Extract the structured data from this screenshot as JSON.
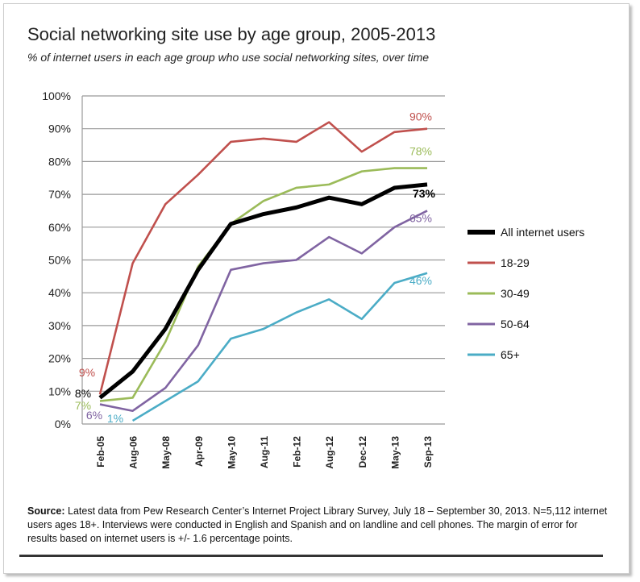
{
  "chart_data": {
    "type": "line",
    "title": "Social networking site use by age group, 2005-2013",
    "subtitle": "% of internet users in each age group who use social networking sites, over time",
    "categories": [
      "Feb-05",
      "Aug-06",
      "May-08",
      "Apr-09",
      "May-10",
      "Aug-11",
      "Feb-12",
      "Aug-12",
      "Dec-12",
      "May-13",
      "Sep-13"
    ],
    "ylim": [
      0,
      100
    ],
    "yticks": [
      "0%",
      "10%",
      "20%",
      "30%",
      "40%",
      "50%",
      "60%",
      "70%",
      "80%",
      "90%",
      "100%"
    ],
    "grid": true,
    "legend_position": "right",
    "series": [
      {
        "name": "All internet users",
        "color": "#000000",
        "values": [
          8,
          16,
          29,
          47,
          61,
          64,
          66,
          69,
          67,
          72,
          73
        ],
        "start_label": "8%",
        "end_label": "73%"
      },
      {
        "name": "18-29",
        "color": "#c0504d",
        "values": [
          9,
          49,
          67,
          76,
          86,
          87,
          86,
          92,
          83,
          89,
          90
        ],
        "start_label": "9%",
        "end_label": "90%"
      },
      {
        "name": "30-49",
        "color": "#9bbb59",
        "values": [
          7,
          8,
          25,
          48,
          61,
          68,
          72,
          73,
          77,
          78,
          78
        ],
        "start_label": "7%",
        "end_label": "78%"
      },
      {
        "name": "50-64",
        "color": "#8064a2",
        "values": [
          6,
          4,
          11,
          24,
          47,
          49,
          50,
          57,
          52,
          60,
          65
        ],
        "start_label": "6%",
        "end_label": "65%"
      },
      {
        "name": "65+",
        "color": "#4bacc6",
        "values": [
          null,
          1,
          7,
          13,
          26,
          29,
          34,
          38,
          32,
          43,
          46
        ],
        "start_label": "1%",
        "end_label": "46%"
      }
    ]
  },
  "source": {
    "label": "Source:",
    "text": " Latest data from Pew Research Center’s Internet Project Library Survey, July 18 – September 30, 2013. N=5,112 internet users ages 18+. Interviews were conducted in English and Spanish and on landline and cell phones.  The margin of error for results based on internet users is +/- 1.6 percentage points."
  }
}
